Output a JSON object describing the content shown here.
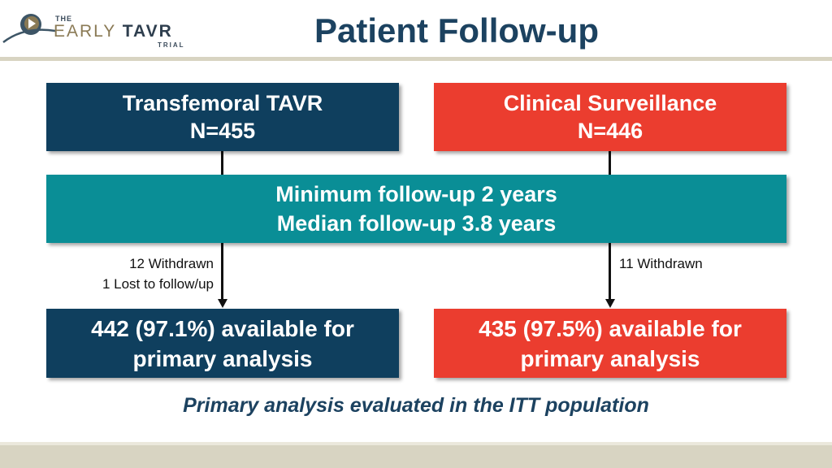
{
  "logo": {
    "the": "THE",
    "early": "EARLY",
    "tavr": "TAVR",
    "trial": "TRIAL"
  },
  "title": "Patient Follow-up",
  "arms": {
    "left": {
      "name": "Transfemoral TAVR",
      "n": "N=455",
      "color": "#0f3f5e"
    },
    "right": {
      "name": "Clinical Surveillance",
      "n": "N=446",
      "color": "#eb3d2f"
    }
  },
  "follow_up": {
    "line1": "Minimum follow-up 2 years",
    "line2": "Median follow-up 3.8 years",
    "color": "#0a8e96"
  },
  "losses": {
    "left": [
      "12 Withdrawn",
      "1 Lost to follow/up"
    ],
    "right": [
      "11 Withdrawn"
    ]
  },
  "results": {
    "left": {
      "line1": "442 (97.1%) available for",
      "line2": "primary analysis"
    },
    "right": {
      "line1": "435 (97.5%) available for",
      "line2": "primary analysis"
    }
  },
  "footnote": "Primary analysis evaluated in the ITT population"
}
